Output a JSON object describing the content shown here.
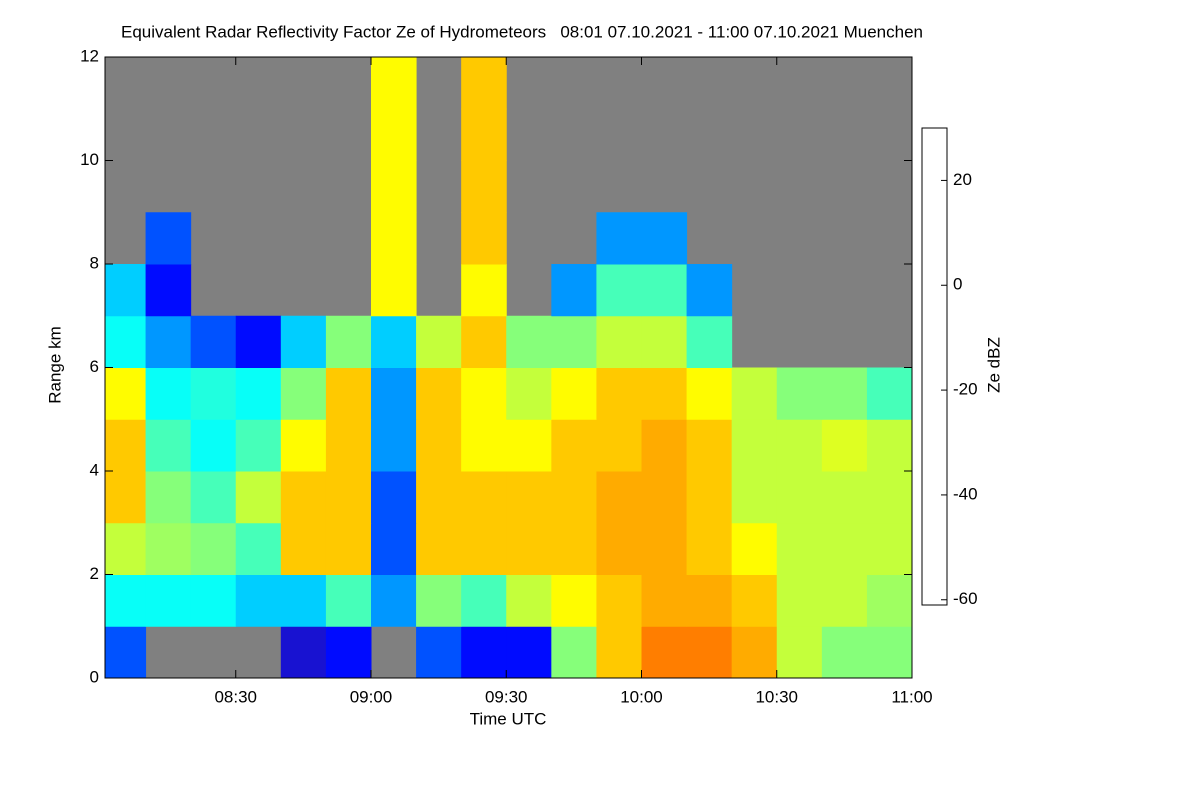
{
  "chart_data": {
    "type": "heatmap",
    "title": "Equivalent Radar Reflectivity Factor Ze of Hydrometeors   08:01 07.10.2021 - 11:00 07.10.2021 Muenchen",
    "x_label": "Time UTC",
    "y_label": "Range km",
    "colorbar_label": "Ze dBZ",
    "xlim": [
      "08:01",
      "11:00"
    ],
    "xticks": [
      "08:30",
      "09:00",
      "09:30",
      "10:00",
      "10:30",
      "11:00"
    ],
    "ylim": [
      0,
      12
    ],
    "yticks": [
      0,
      2,
      4,
      6,
      8,
      10,
      12
    ],
    "clim": [
      -61,
      30
    ],
    "cticks": [
      -60,
      -40,
      -20,
      0,
      20
    ],
    "colormap": [
      "#6a6a78",
      "#3a2a90",
      "#0000ff",
      "#0090ff",
      "#00ffff",
      "#80ff80",
      "#ffff00",
      "#ff9900",
      "#ff2000",
      "#800000"
    ],
    "background": "#808080",
    "x_bins": [
      "08:01",
      "08:10",
      "08:20",
      "08:30",
      "08:40",
      "08:50",
      "09:00",
      "09:10",
      "09:20",
      "09:30",
      "09:40",
      "09:50",
      "10:00",
      "10:10",
      "10:20",
      "10:30",
      "10:40",
      "10:50",
      "11:00"
    ],
    "y_bins": [
      0,
      1,
      2,
      3,
      4,
      5,
      6,
      7,
      8,
      9,
      10,
      11,
      12
    ],
    "z": [
      [
        -35,
        null,
        null,
        null,
        -45,
        -40,
        null,
        -35,
        -40,
        -40,
        -10,
        5,
        12,
        12,
        8,
        -5,
        -10,
        -10
      ],
      [
        -20,
        -20,
        -20,
        -25,
        -25,
        -15,
        -30,
        -10,
        -15,
        -5,
        0,
        5,
        8,
        8,
        5,
        -5,
        -5,
        -8
      ],
      [
        -5,
        -8,
        -10,
        -15,
        5,
        5,
        -35,
        5,
        5,
        5,
        5,
        8,
        8,
        5,
        0,
        -5,
        -5,
        -5
      ],
      [
        5,
        -10,
        -15,
        -5,
        5,
        5,
        -35,
        5,
        5,
        5,
        5,
        8,
        8,
        5,
        -5,
        -5,
        -5,
        -5
      ],
      [
        5,
        -15,
        -20,
        -15,
        0,
        5,
        -30,
        5,
        0,
        0,
        5,
        5,
        8,
        5,
        -5,
        -5,
        -3,
        -5
      ],
      [
        0,
        -20,
        -18,
        -20,
        -10,
        5,
        -30,
        5,
        0,
        -5,
        0,
        5,
        5,
        0,
        -5,
        -10,
        -10,
        -15
      ],
      [
        -20,
        -30,
        -35,
        -40,
        -25,
        -10,
        -25,
        -5,
        5,
        -10,
        -10,
        -5,
        -5,
        -15,
        null,
        null,
        null,
        null
      ],
      [
        -25,
        -40,
        null,
        null,
        null,
        null,
        0,
        null,
        0,
        null,
        -30,
        -15,
        -15,
        -30,
        null,
        null,
        null,
        null
      ],
      [
        null,
        -35,
        null,
        null,
        null,
        null,
        0,
        null,
        5,
        null,
        null,
        -30,
        -30,
        null,
        null,
        null,
        null,
        null
      ],
      [
        null,
        null,
        null,
        null,
        null,
        null,
        0,
        null,
        5,
        null,
        null,
        null,
        null,
        null,
        null,
        null,
        null,
        null
      ],
      [
        null,
        null,
        null,
        null,
        null,
        null,
        0,
        null,
        5,
        null,
        null,
        null,
        null,
        null,
        null,
        null,
        null,
        null
      ],
      [
        null,
        null,
        null,
        null,
        null,
        null,
        0,
        null,
        5,
        null,
        null,
        null,
        null,
        null,
        null,
        null,
        null,
        null
      ]
    ]
  }
}
